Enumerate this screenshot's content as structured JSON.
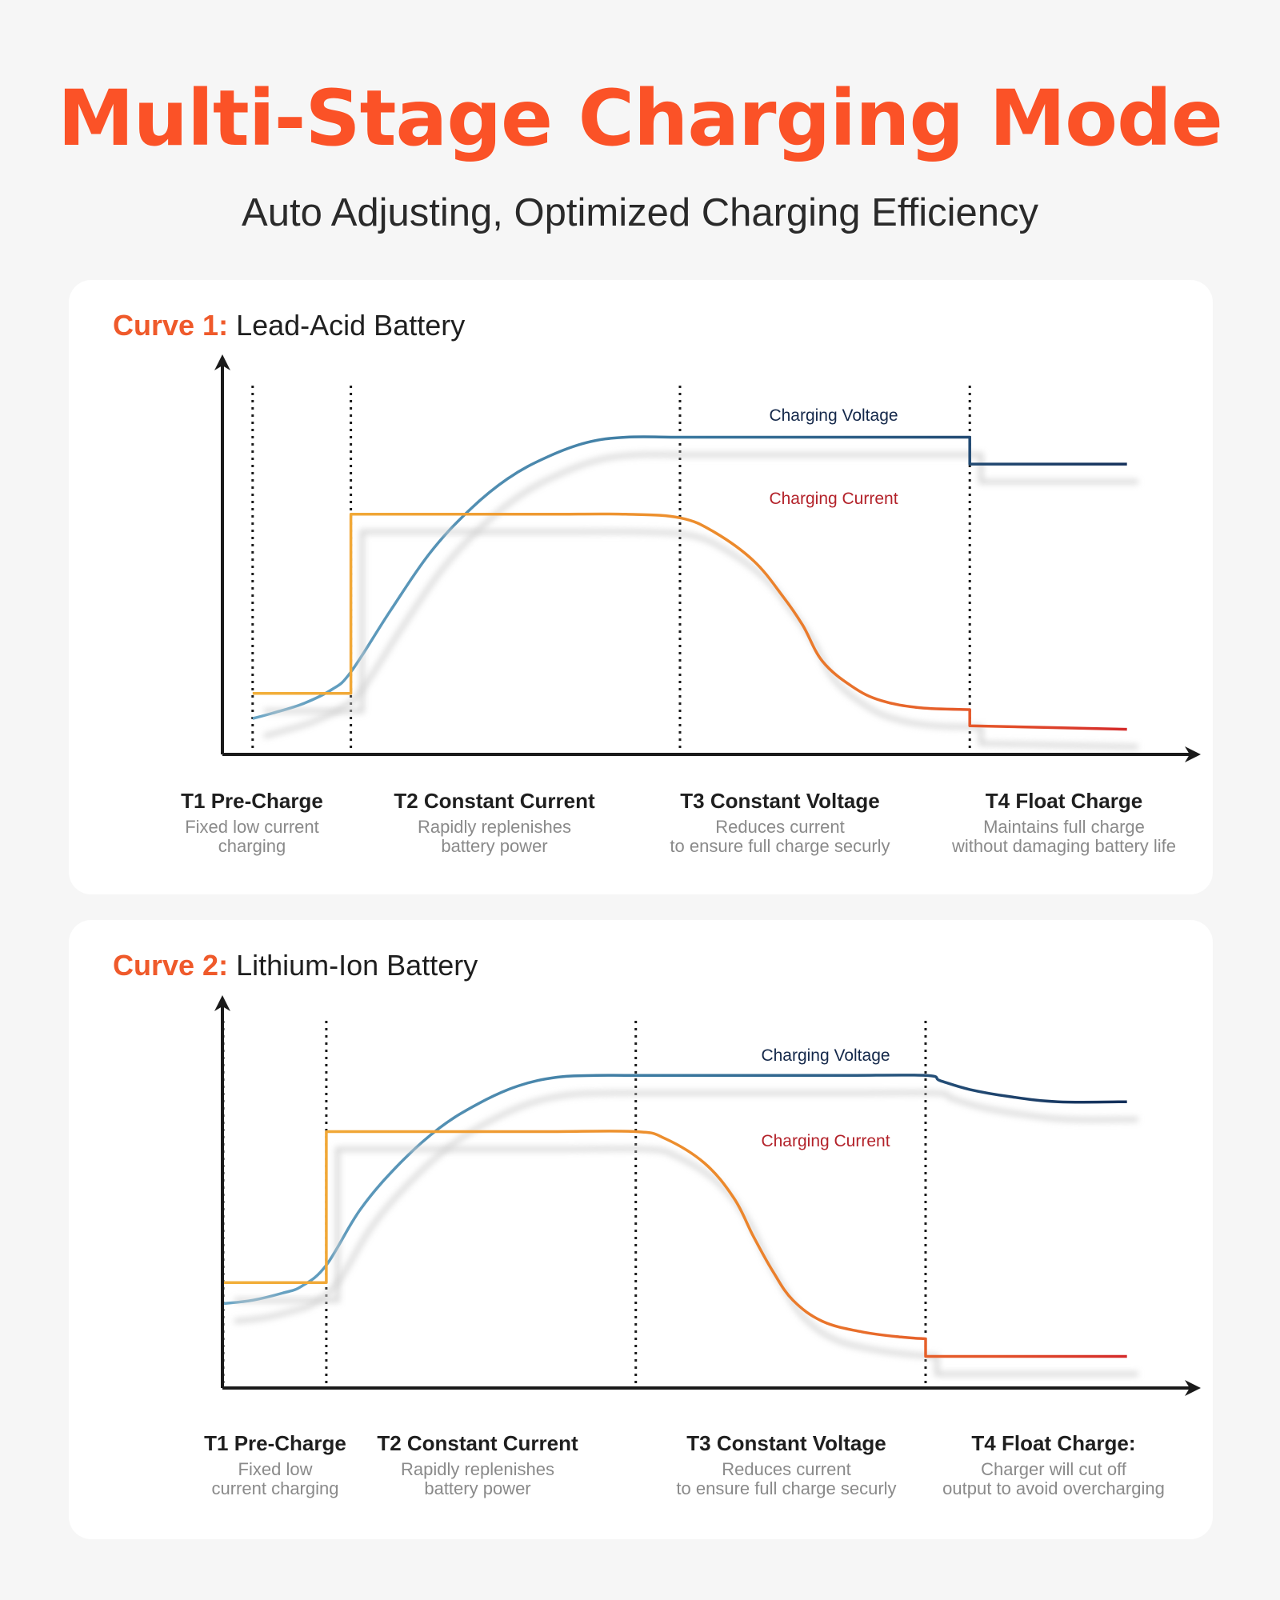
{
  "title": "Multi-Stage Charging Mode",
  "subtitle": "Auto Adjusting, Optimized Charging Efficiency",
  "colors": {
    "accent": "#fb5227",
    "voltage_curve": "#3f7da3",
    "voltage_label": "#14284a",
    "current_curve": "#e6862e",
    "current_label": "#b3222a",
    "precharge_current": "#f2b03a"
  },
  "chart_data": [
    {
      "type": "line",
      "title_tag": "Curve 1:",
      "title_name": "Lead-Acid Battery",
      "xlim": [
        0,
        100
      ],
      "ylim": [
        0,
        100
      ],
      "stage_boundaries": [
        10,
        20,
        53.5,
        83
      ],
      "series": [
        {
          "name": "Charging Voltage",
          "x": [
            10,
            12,
            15,
            18,
            20,
            24,
            28,
            32,
            36,
            40,
            44,
            48,
            53.5,
            60,
            70,
            83,
            83,
            99
          ],
          "y": [
            10,
            11.5,
            14,
            18,
            23,
            40,
            56,
            68,
            77,
            83,
            87,
            88.5,
            88.5,
            88.5,
            88.5,
            88.5,
            81,
            81
          ]
        },
        {
          "name": "Charging Current",
          "x": [
            10,
            20,
            20,
            30,
            40,
            48,
            53.5,
            57,
            61,
            64,
            66,
            68,
            71,
            74,
            78,
            83,
            83,
            99
          ],
          "y": [
            17,
            17,
            67,
            67,
            67,
            67,
            66,
            62,
            54,
            44,
            36,
            26,
            19,
            15,
            13,
            12.5,
            8,
            7
          ]
        }
      ],
      "stages": [
        {
          "title": "T1 Pre-Charge",
          "desc": [
            "Fixed low current",
            "charging"
          ]
        },
        {
          "title": "T2 Constant Current",
          "desc": [
            "Rapidly replenishes",
            "battery power"
          ]
        },
        {
          "title": "T3 Constant Voltage",
          "desc": [
            "Reduces current",
            "to ensure full charge securly"
          ]
        },
        {
          "title": "T4 Float Charge",
          "desc": [
            "Maintains full charge",
            "without damaging battery life"
          ]
        }
      ]
    },
    {
      "type": "line",
      "title_tag": "Curve 2:",
      "title_name": "Lithium-Ion Battery",
      "xlim": [
        0,
        100
      ],
      "ylim": [
        0,
        100
      ],
      "stage_boundaries": [
        7,
        17.5,
        49,
        78.5
      ],
      "series": [
        {
          "name": "Charging Voltage",
          "x": [
            7,
            10,
            13,
            15,
            17.5,
            21,
            25,
            29,
            33,
            37,
            41,
            45,
            49,
            60,
            70,
            78.5,
            80,
            83,
            87,
            92,
            99
          ],
          "y": [
            24,
            25,
            27,
            29,
            35,
            51,
            64,
            74,
            81,
            86,
            88.5,
            89,
            89,
            89,
            89,
            89,
            87.5,
            85,
            83,
            81.5,
            81.5
          ]
        },
        {
          "name": "Charging Current",
          "x": [
            7,
            17.5,
            17.5,
            30,
            40,
            49,
            52,
            56,
            59,
            61,
            63,
            65,
            68,
            72,
            76,
            78.5,
            78.5,
            99
          ],
          "y": [
            30,
            30,
            73,
            73,
            73,
            73,
            71,
            64,
            54,
            43,
            33,
            25,
            19,
            16,
            14.5,
            14,
            9,
            9
          ]
        }
      ],
      "stages": [
        {
          "title": "T1 Pre-Charge",
          "desc": [
            "Fixed low",
            "current charging"
          ]
        },
        {
          "title": "T2 Constant Current",
          "desc": [
            "Rapidly replenishes",
            "battery power"
          ]
        },
        {
          "title": "T3 Constant Voltage",
          "desc": [
            "Reduces current",
            "to ensure full charge securly"
          ]
        },
        {
          "title": "T4 Float Charge:",
          "desc": [
            "Charger will cut off",
            "output to avoid overcharging"
          ]
        }
      ]
    }
  ]
}
